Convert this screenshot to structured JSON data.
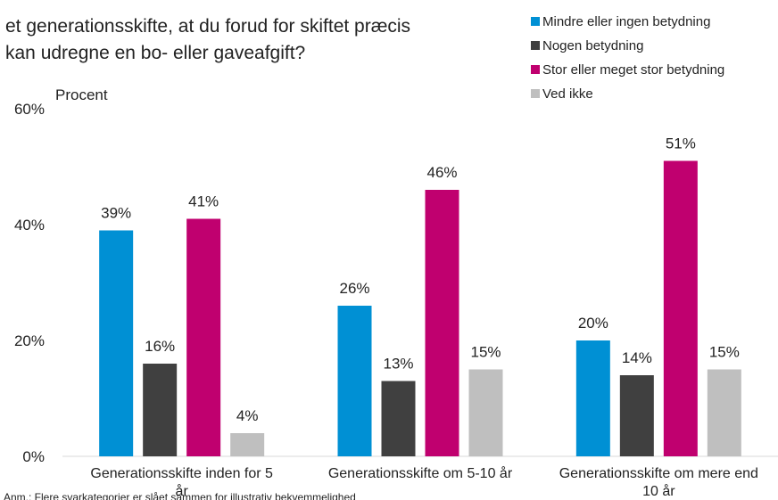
{
  "chart_data": {
    "type": "bar",
    "title_lines": [
      "et generationsskifte, at du forud for skiftet præcis",
      "kan udregne en bo- eller gaveafgift?"
    ],
    "y_label": "Procent",
    "note": "Anm.: Flere svarkategorier er slået sammen for illustrativ bekvemmelighed",
    "categories": [
      "Generationsskifte inden for 5 år",
      "Generationsskifte om 5-10 år",
      "Generationsskifte om mere end 10 år"
    ],
    "series": [
      {
        "name": "Mindre eller ingen betydning",
        "color": "#0090d4",
        "values": [
          39,
          26,
          20
        ],
        "value_labels": [
          "39%",
          "26%",
          "20%"
        ]
      },
      {
        "name": "Nogen betydning",
        "color": "#404040",
        "values": [
          16,
          13,
          14
        ],
        "value_labels": [
          "16%",
          "13%",
          "14%"
        ]
      },
      {
        "name": "Stor eller meget stor betydning",
        "color": "#c0006f",
        "values": [
          41,
          46,
          51
        ],
        "value_labels": [
          "41%",
          "46%",
          "51%"
        ]
      },
      {
        "name": "Ved ikke",
        "color": "#bfbfbf",
        "values": [
          4,
          15,
          15
        ],
        "value_labels": [
          "4%",
          "15%",
          "15%"
        ]
      }
    ],
    "ylim": [
      0,
      60
    ],
    "yticks": [
      {
        "value": 0,
        "label": "0%"
      },
      {
        "value": 20,
        "label": "20%"
      },
      {
        "value": 40,
        "label": "40%"
      },
      {
        "value": 60,
        "label": "60%"
      }
    ],
    "legend": "top-right"
  }
}
